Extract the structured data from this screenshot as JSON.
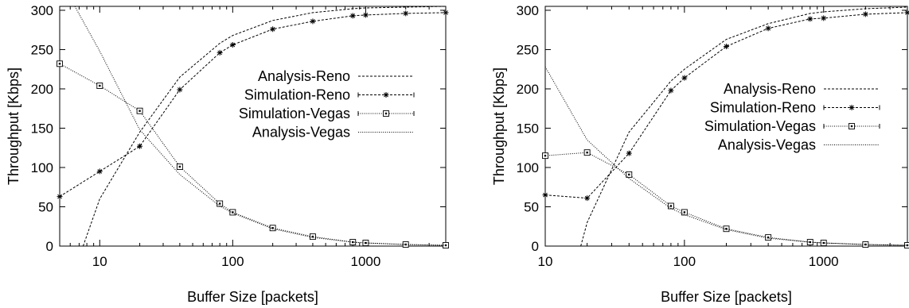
{
  "chart_data": [
    {
      "type": "line",
      "title": "",
      "xlabel": "Buffer Size [packets]",
      "ylabel": "Throughput [Kbps]",
      "xscale": "log",
      "xlim": [
        5,
        4000
      ],
      "ylim": [
        0,
        305
      ],
      "xticks": [
        10,
        100,
        1000
      ],
      "xtick_labels": [
        "10",
        "100",
        "1000"
      ],
      "yticks": [
        0,
        50,
        100,
        150,
        200,
        250,
        300
      ],
      "ytick_labels": [
        "0",
        "50",
        "100",
        "150",
        "200",
        "250",
        "300"
      ],
      "grid": false,
      "legend_position": "center-right",
      "series": [
        {
          "name": "Analysis-Reno",
          "style": "dashed",
          "marker": "none",
          "x": [
            7.5,
            10,
            20,
            40,
            80,
            100,
            200,
            400,
            800,
            1000,
            2000,
            4000
          ],
          "y": [
            0,
            60,
            145,
            215,
            258,
            268,
            287,
            297,
            302,
            303,
            304,
            305
          ]
        },
        {
          "name": "Simulation-Reno",
          "style": "dashed",
          "marker": "star",
          "x": [
            5,
            10,
            20,
            40,
            80,
            100,
            200,
            400,
            800,
            1000,
            2000,
            4000
          ],
          "y": [
            63,
            95,
            127,
            199,
            246,
            256,
            276,
            286,
            293,
            294,
            296,
            297
          ]
        },
        {
          "name": "Simulation-Vegas",
          "style": "dotted",
          "marker": "square",
          "x": [
            5,
            10,
            20,
            40,
            80,
            100,
            200,
            400,
            800,
            1000,
            2000,
            4000
          ],
          "y": [
            232,
            204,
            172,
            101,
            54,
            43,
            23,
            12,
            5,
            4,
            2,
            1
          ]
        },
        {
          "name": "Analysis-Vegas",
          "style": "dotted",
          "marker": "none",
          "x": [
            6.5,
            10,
            20,
            40,
            80,
            100,
            200,
            400,
            800,
            1000,
            2000,
            4000
          ],
          "y": [
            305,
            248,
            148,
            91,
            51,
            42,
            22,
            11,
            5,
            4,
            2,
            1
          ]
        }
      ]
    },
    {
      "type": "line",
      "title": "",
      "xlabel": "Buffer Size [packets]",
      "ylabel": "Throughput [Kbps]",
      "xscale": "log",
      "xlim": [
        10,
        4000
      ],
      "ylim": [
        0,
        305
      ],
      "xticks": [
        10,
        100,
        1000
      ],
      "xtick_labels": [
        "10",
        "100",
        "1000"
      ],
      "yticks": [
        0,
        50,
        100,
        150,
        200,
        250,
        300
      ],
      "ytick_labels": [
        "0",
        "50",
        "100",
        "150",
        "200",
        "250",
        "300"
      ],
      "grid": false,
      "legend_position": "center-right",
      "series": [
        {
          "name": "Analysis-Reno",
          "style": "dashed",
          "marker": "none",
          "x": [
            18,
            20,
            40,
            80,
            100,
            200,
            400,
            800,
            1000,
            2000,
            4000
          ],
          "y": [
            0,
            30,
            145,
            210,
            225,
            263,
            283,
            296,
            298,
            302,
            304
          ]
        },
        {
          "name": "Simulation-Reno",
          "style": "dashed",
          "marker": "star",
          "x": [
            10,
            20,
            40,
            80,
            100,
            200,
            400,
            800,
            1000,
            2000,
            4000
          ],
          "y": [
            65,
            61,
            118,
            198,
            214,
            254,
            277,
            289,
            290,
            295,
            297
          ]
        },
        {
          "name": "Simulation-Vegas",
          "style": "dotted",
          "marker": "square",
          "x": [
            10,
            20,
            40,
            80,
            100,
            200,
            400,
            800,
            1000,
            2000,
            4000
          ],
          "y": [
            115,
            119,
            91,
            51,
            43,
            22,
            11,
            5,
            4,
            2,
            1
          ]
        },
        {
          "name": "Analysis-Vegas",
          "style": "dotted",
          "marker": "none",
          "x": [
            10,
            20,
            40,
            80,
            100,
            200,
            400,
            800,
            1000,
            2000,
            4000
          ],
          "y": [
            228,
            135,
            86,
            48,
            40,
            21,
            10,
            5,
            4,
            2,
            1
          ]
        }
      ]
    }
  ]
}
